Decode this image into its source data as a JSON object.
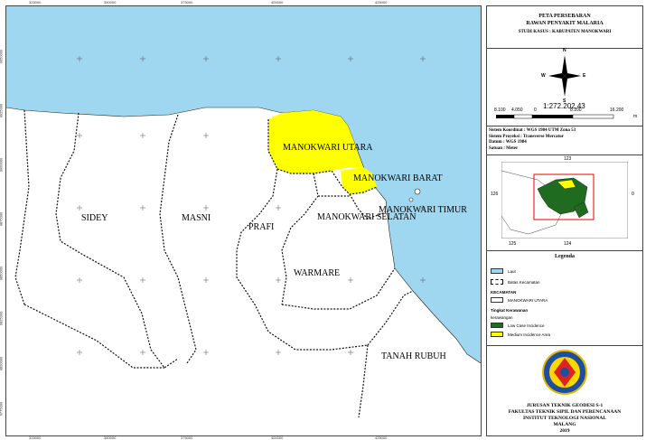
{
  "map": {
    "colors": {
      "sea": "#9fd7f0",
      "yellow": "#ffff00",
      "dark_green": "#1f6b1f",
      "border": "#111111"
    },
    "labels": [
      {
        "id": "sidey",
        "text": "SIDEY"
      },
      {
        "id": "masni",
        "text": "MASNI"
      },
      {
        "id": "prafi",
        "text": "PRAFI"
      },
      {
        "id": "manokwari_utara",
        "text": "MANOKWARI UTARA"
      },
      {
        "id": "manokwari_barat",
        "text": "MANOKWARI BARAT"
      },
      {
        "id": "manokwari_timur",
        "text": "MANOKWARI TIMUR"
      },
      {
        "id": "manokwari_selatan",
        "text": "MANOKWARI SELATAN"
      },
      {
        "id": "warmare",
        "text": "WARMARE"
      },
      {
        "id": "tanah_rubuh",
        "text": "TANAH RUBUH"
      }
    ],
    "coords_top": [
      "325000",
      "350000",
      "375000",
      "400000",
      "425000"
    ],
    "coords_left": [
      "9950000",
      "9925000",
      "9900000",
      "9875000",
      "9850000",
      "9825000",
      "9800000",
      "9775000"
    ],
    "coords_bottom": [
      "325000",
      "350000",
      "375000",
      "400000",
      "425000"
    ]
  },
  "panel": {
    "title_line1": "PETA PERSEBARAN",
    "title_line2": "RAWAN PENYAKIT MALARIA",
    "title_line3": "STUDI KASUS : KABUPATEN MANOKWARI",
    "compass_n": "N",
    "compass_e": "E",
    "compass_s": "S",
    "compass_w": "W",
    "scale_text": "1:272.202,43",
    "scale_ticks": [
      "8.100",
      "4.050",
      "0",
      "8.100",
      "16.200"
    ],
    "scale_unit": "m",
    "info": [
      "Sistem Koordinat : WGS 1984 UTM Zona 53",
      "Sistem Proyeksi : Transverse Mercator",
      "Datum : WGS 1984",
      "Satuan : Meter"
    ],
    "inset_ticks": [
      "123",
      "124",
      "125",
      "126",
      "0"
    ],
    "legend_title": "Legenda",
    "legend": {
      "laut": "Laut",
      "batas": "Batas Kecamatan",
      "kecamatan_header": "KECAMATAN",
      "kecamatan_item": "MANOKWARI UTARA",
      "tingkat_header": "Tingkat Kerawanan",
      "kerawanan_header": "kerawangan",
      "low": "Low Case Incidence",
      "medium": "Medium Incidence Area"
    },
    "bottom_line1": "JURUSAN TEKNIK GEODESI S-1",
    "bottom_line2": "FAKULTAS TEKNIK SIPIL DAN PERENCANAAN",
    "bottom_line3": "INSTITUT TEKNOLOGI NASIONAL",
    "bottom_line4": "MALANG",
    "bottom_line5": "2019"
  }
}
